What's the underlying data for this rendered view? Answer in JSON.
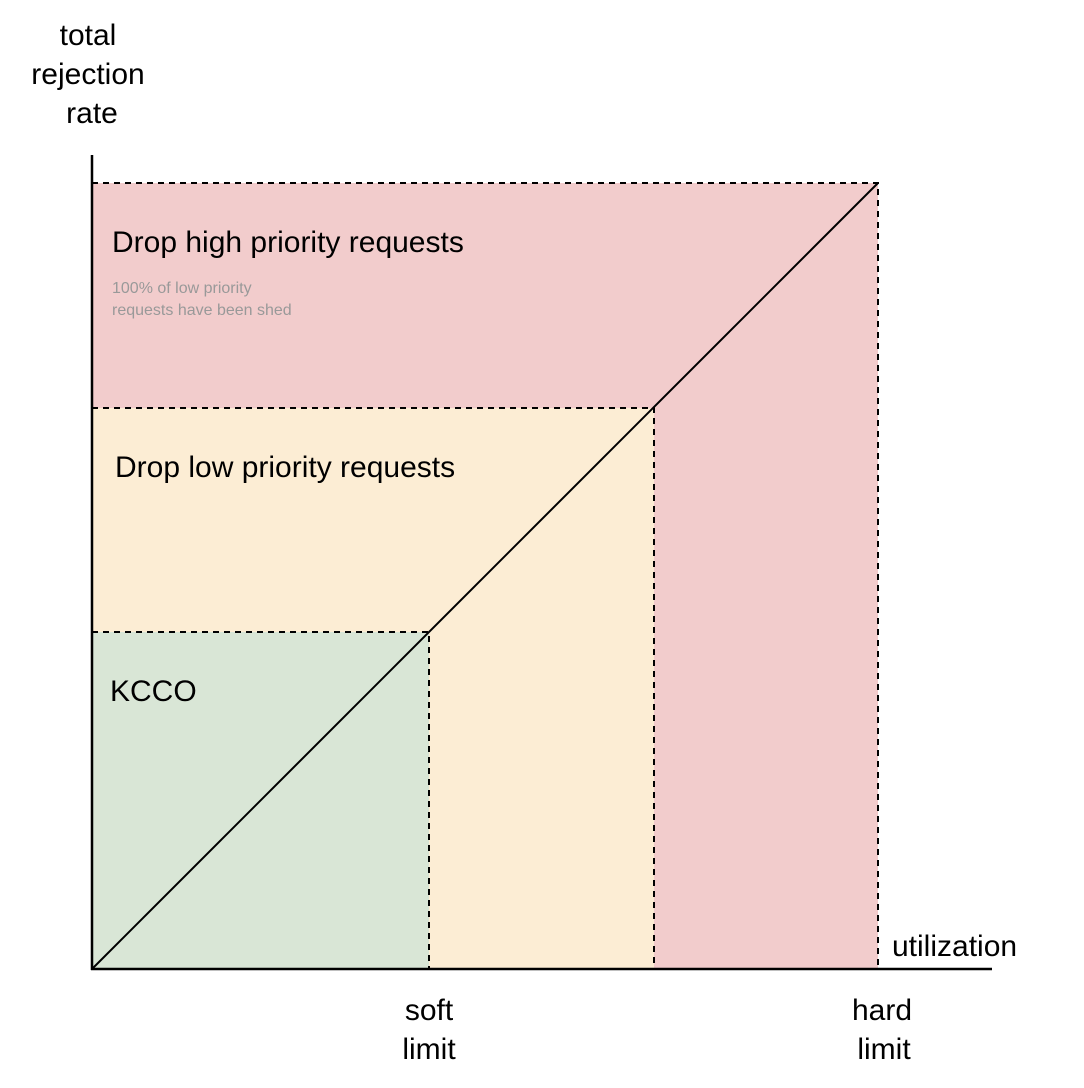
{
  "axes": {
    "y_label_lines": [
      "total",
      "rejection",
      "rate"
    ],
    "x_label": "utilization",
    "x_ticks": {
      "soft_limit_lines": [
        "soft",
        "limit"
      ],
      "hard_limit_lines": [
        "hard",
        "limit"
      ]
    }
  },
  "zones": {
    "high": {
      "title": "Drop high priority requests",
      "note_lines": [
        "100% of low priority",
        "requests have been shed"
      ],
      "color": "#f2cccc"
    },
    "low": {
      "title": "Drop low priority requests",
      "color": "#fcedd4"
    },
    "ok": {
      "title": "KCCO",
      "color": "#d9e6d6"
    }
  },
  "colors": {
    "axis": "#000000",
    "dashed_border": "#000000",
    "note_text": "#999999"
  }
}
